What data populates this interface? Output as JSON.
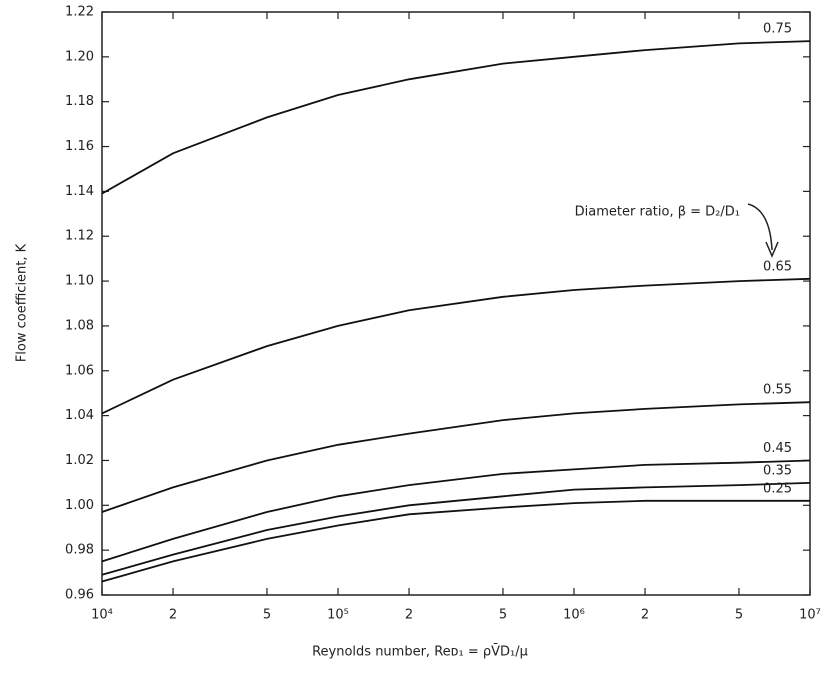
{
  "chart_data": {
    "type": "line",
    "y_label": "Flow coefficient, K",
    "x_label": "Reynolds number, Reᴅ₁ = ρV̄D₁/μ",
    "annotation": "Diameter ratio, β = D₂/D₁",
    "xscale": "log",
    "x": [
      10000,
      20000,
      50000,
      100000,
      200000,
      500000,
      1000000,
      2000000,
      5000000,
      10000000
    ],
    "xlim": [
      10000,
      10000000
    ],
    "xticks": [
      {
        "value": 10000,
        "label": "10⁴"
      },
      {
        "value": 20000,
        "label": "2"
      },
      {
        "value": 50000,
        "label": "5"
      },
      {
        "value": 100000,
        "label": "10⁵"
      },
      {
        "value": 200000,
        "label": "2"
      },
      {
        "value": 500000,
        "label": "5"
      },
      {
        "value": 1000000,
        "label": "10⁶"
      },
      {
        "value": 2000000,
        "label": "2"
      },
      {
        "value": 5000000,
        "label": "5"
      },
      {
        "value": 10000000,
        "label": "10⁷"
      }
    ],
    "ylim": [
      0.96,
      1.22
    ],
    "yticks": [
      0.96,
      0.98,
      {
        "value": 1.0,
        "label": "1.00"
      },
      1.02,
      1.04,
      1.06,
      1.08,
      {
        "value": 1.1,
        "label": "1.10"
      },
      1.12,
      1.14,
      1.16,
      1.18,
      {
        "value": 1.2,
        "label": "1.20"
      },
      1.22
    ],
    "grid": false,
    "series": [
      {
        "name": "0.75",
        "color": "#111111",
        "values": [
          1.139,
          1.157,
          1.173,
          1.183,
          1.19,
          1.197,
          1.2,
          1.203,
          1.206,
          1.207
        ]
      },
      {
        "name": "0.65",
        "color": "#111111",
        "values": [
          1.041,
          1.056,
          1.071,
          1.08,
          1.087,
          1.093,
          1.096,
          1.098,
          1.1,
          1.101
        ]
      },
      {
        "name": "0.55",
        "color": "#111111",
        "values": [
          0.997,
          1.008,
          1.02,
          1.027,
          1.032,
          1.038,
          1.041,
          1.043,
          1.045,
          1.046
        ]
      },
      {
        "name": "0.45",
        "color": "#111111",
        "values": [
          0.975,
          0.985,
          0.997,
          1.004,
          1.009,
          1.014,
          1.016,
          1.018,
          1.019,
          1.02
        ]
      },
      {
        "name": "0.35",
        "color": "#111111",
        "values": [
          0.969,
          0.978,
          0.989,
          0.995,
          1.0,
          1.004,
          1.007,
          1.008,
          1.009,
          1.01
        ]
      },
      {
        "name": "0.25",
        "color": "#111111",
        "values": [
          0.966,
          0.975,
          0.985,
          0.991,
          0.996,
          0.999,
          1.001,
          1.002,
          1.002,
          1.002
        ]
      }
    ]
  }
}
